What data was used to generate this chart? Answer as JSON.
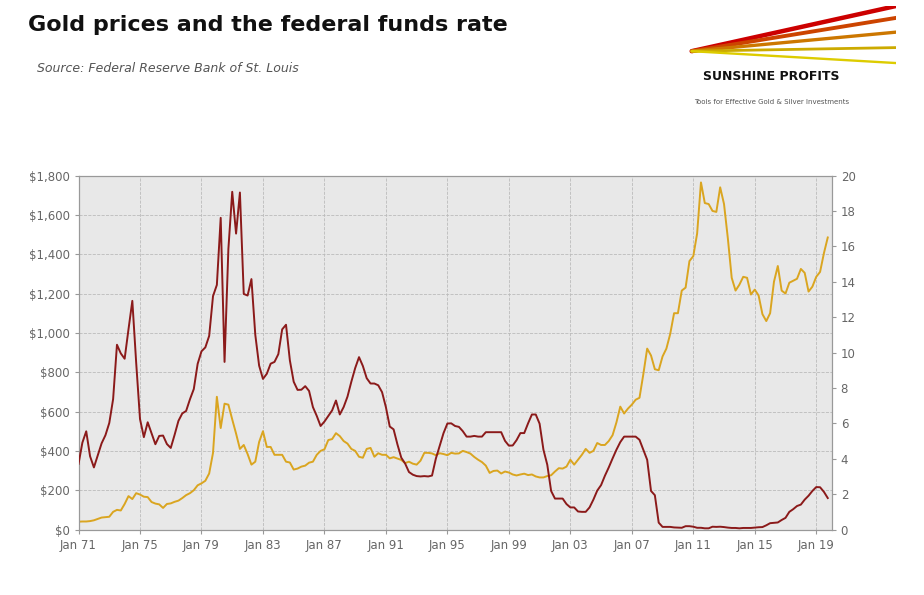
{
  "title": "Gold prices and the federal funds rate",
  "source": "Source: Federal Reserve Bank of St. Louis",
  "background_color": "#e8e8e8",
  "outer_background": "#ffffff",
  "gold_color": "#DAA520",
  "ffr_color": "#8B1A1A",
  "grid_color": "#bbbbbb",
  "left_ylim": [
    0,
    1800
  ],
  "right_ylim": [
    0,
    20
  ],
  "left_yticks": [
    0,
    200,
    400,
    600,
    800,
    1000,
    1200,
    1400,
    1600,
    1800
  ],
  "right_yticks": [
    0,
    2,
    4,
    6,
    8,
    10,
    12,
    14,
    16,
    18,
    20
  ],
  "left_yticklabels": [
    "$0",
    "$200",
    "$400",
    "$600",
    "$800",
    "$1,000",
    "$1,200",
    "$1,400",
    "$1,600",
    "$1,800"
  ],
  "right_yticklabels": [
    "0",
    "2",
    "4",
    "6",
    "8",
    "10",
    "12",
    "14",
    "16",
    "18",
    "20"
  ],
  "xtick_years": [
    1971,
    1975,
    1979,
    1983,
    1987,
    1991,
    1995,
    1999,
    2003,
    2007,
    2011,
    2015,
    2019
  ],
  "xtick_labels": [
    "Jan 71",
    "Jan 75",
    "Jan 79",
    "Jan 83",
    "Jan 87",
    "Jan 91",
    "Jan 95",
    "Jan 99",
    "Jan 03",
    "Jan 07",
    "Jan 11",
    "Jan 15",
    "Jan 19"
  ],
  "logo_ray_colors": [
    "#cc0000",
    "#cc4400",
    "#cc7700",
    "#ccaa00",
    "#ddcc00"
  ],
  "logo_text_main": "SUNSHINE PROFITS",
  "logo_text_sub": "Tools for Effective Gold & Silver Investments",
  "ffr_data": [
    [
      1971.0,
      3.71
    ],
    [
      1971.25,
      4.91
    ],
    [
      1971.5,
      5.55
    ],
    [
      1971.75,
      4.14
    ],
    [
      1972.0,
      3.51
    ],
    [
      1972.25,
      4.19
    ],
    [
      1972.5,
      4.87
    ],
    [
      1972.75,
      5.33
    ],
    [
      1973.0,
      6.02
    ],
    [
      1973.25,
      7.37
    ],
    [
      1973.5,
      10.44
    ],
    [
      1973.75,
      9.95
    ],
    [
      1974.0,
      9.65
    ],
    [
      1974.25,
      11.31
    ],
    [
      1974.5,
      12.92
    ],
    [
      1974.75,
      9.43
    ],
    [
      1975.0,
      6.24
    ],
    [
      1975.25,
      5.22
    ],
    [
      1975.5,
      6.06
    ],
    [
      1975.75,
      5.44
    ],
    [
      1976.0,
      4.82
    ],
    [
      1976.25,
      5.29
    ],
    [
      1976.5,
      5.31
    ],
    [
      1976.75,
      4.83
    ],
    [
      1977.0,
      4.61
    ],
    [
      1977.25,
      5.35
    ],
    [
      1977.5,
      6.14
    ],
    [
      1977.75,
      6.56
    ],
    [
      1978.0,
      6.7
    ],
    [
      1978.25,
      7.36
    ],
    [
      1978.5,
      7.94
    ],
    [
      1978.75,
      9.36
    ],
    [
      1979.0,
      10.07
    ],
    [
      1979.25,
      10.29
    ],
    [
      1979.5,
      10.94
    ],
    [
      1979.75,
      13.19
    ],
    [
      1980.0,
      13.82
    ],
    [
      1980.25,
      17.61
    ],
    [
      1980.5,
      9.47
    ],
    [
      1980.75,
      15.85
    ],
    [
      1981.0,
      19.08
    ],
    [
      1981.25,
      16.72
    ],
    [
      1981.5,
      19.04
    ],
    [
      1981.75,
      13.31
    ],
    [
      1982.0,
      13.22
    ],
    [
      1982.25,
      14.15
    ],
    [
      1982.5,
      11.01
    ],
    [
      1982.75,
      9.26
    ],
    [
      1983.0,
      8.51
    ],
    [
      1983.25,
      8.8
    ],
    [
      1983.5,
      9.37
    ],
    [
      1983.75,
      9.47
    ],
    [
      1984.0,
      9.91
    ],
    [
      1984.25,
      11.31
    ],
    [
      1984.5,
      11.57
    ],
    [
      1984.75,
      9.56
    ],
    [
      1985.0,
      8.35
    ],
    [
      1985.25,
      7.89
    ],
    [
      1985.5,
      7.9
    ],
    [
      1985.75,
      8.1
    ],
    [
      1986.0,
      7.83
    ],
    [
      1986.25,
      6.92
    ],
    [
      1986.5,
      6.42
    ],
    [
      1986.75,
      5.85
    ],
    [
      1987.0,
      6.1
    ],
    [
      1987.25,
      6.42
    ],
    [
      1987.5,
      6.73
    ],
    [
      1987.75,
      7.29
    ],
    [
      1988.0,
      6.5
    ],
    [
      1988.25,
      6.92
    ],
    [
      1988.5,
      7.51
    ],
    [
      1988.75,
      8.35
    ],
    [
      1989.0,
      9.12
    ],
    [
      1989.25,
      9.74
    ],
    [
      1989.5,
      9.24
    ],
    [
      1989.75,
      8.55
    ],
    [
      1990.0,
      8.25
    ],
    [
      1990.25,
      8.25
    ],
    [
      1990.5,
      8.15
    ],
    [
      1990.75,
      7.76
    ],
    [
      1991.0,
      6.91
    ],
    [
      1991.25,
      5.82
    ],
    [
      1991.5,
      5.66
    ],
    [
      1991.75,
      4.81
    ],
    [
      1992.0,
      4.06
    ],
    [
      1992.25,
      3.73
    ],
    [
      1992.5,
      3.25
    ],
    [
      1992.75,
      3.1
    ],
    [
      1993.0,
      3.02
    ],
    [
      1993.25,
      3.0
    ],
    [
      1993.5,
      3.02
    ],
    [
      1993.75,
      3.0
    ],
    [
      1994.0,
      3.05
    ],
    [
      1994.25,
      4.01
    ],
    [
      1994.5,
      4.73
    ],
    [
      1994.75,
      5.45
    ],
    [
      1995.0,
      5.99
    ],
    [
      1995.25,
      6.0
    ],
    [
      1995.5,
      5.85
    ],
    [
      1995.75,
      5.8
    ],
    [
      1996.0,
      5.56
    ],
    [
      1996.25,
      5.25
    ],
    [
      1996.5,
      5.25
    ],
    [
      1996.75,
      5.29
    ],
    [
      1997.0,
      5.25
    ],
    [
      1997.25,
      5.25
    ],
    [
      1997.5,
      5.5
    ],
    [
      1997.75,
      5.5
    ],
    [
      1998.0,
      5.5
    ],
    [
      1998.25,
      5.5
    ],
    [
      1998.5,
      5.5
    ],
    [
      1998.75,
      5.01
    ],
    [
      1999.0,
      4.74
    ],
    [
      1999.25,
      4.75
    ],
    [
      1999.5,
      5.05
    ],
    [
      1999.75,
      5.45
    ],
    [
      2000.0,
      5.45
    ],
    [
      2000.25,
      6.0
    ],
    [
      2000.5,
      6.5
    ],
    [
      2000.75,
      6.5
    ],
    [
      2001.0,
      5.98
    ],
    [
      2001.25,
      4.51
    ],
    [
      2001.5,
      3.66
    ],
    [
      2001.75,
      2.18
    ],
    [
      2002.0,
      1.75
    ],
    [
      2002.25,
      1.75
    ],
    [
      2002.5,
      1.75
    ],
    [
      2002.75,
      1.44
    ],
    [
      2003.0,
      1.25
    ],
    [
      2003.25,
      1.25
    ],
    [
      2003.5,
      1.02
    ],
    [
      2003.75,
      1.0
    ],
    [
      2004.0,
      1.0
    ],
    [
      2004.25,
      1.25
    ],
    [
      2004.5,
      1.69
    ],
    [
      2004.75,
      2.2
    ],
    [
      2005.0,
      2.51
    ],
    [
      2005.25,
      3.04
    ],
    [
      2005.5,
      3.51
    ],
    [
      2005.75,
      4.02
    ],
    [
      2006.0,
      4.51
    ],
    [
      2006.25,
      4.94
    ],
    [
      2006.5,
      5.25
    ],
    [
      2006.75,
      5.25
    ],
    [
      2007.0,
      5.25
    ],
    [
      2007.25,
      5.25
    ],
    [
      2007.5,
      5.07
    ],
    [
      2007.75,
      4.5
    ],
    [
      2008.0,
      3.94
    ],
    [
      2008.25,
      2.18
    ],
    [
      2008.5,
      1.94
    ],
    [
      2008.75,
      0.39
    ],
    [
      2009.0,
      0.15
    ],
    [
      2009.25,
      0.15
    ],
    [
      2009.5,
      0.15
    ],
    [
      2009.75,
      0.12
    ],
    [
      2010.0,
      0.11
    ],
    [
      2010.25,
      0.1
    ],
    [
      2010.5,
      0.19
    ],
    [
      2010.75,
      0.19
    ],
    [
      2011.0,
      0.16
    ],
    [
      2011.25,
      0.1
    ],
    [
      2011.5,
      0.1
    ],
    [
      2011.75,
      0.07
    ],
    [
      2012.0,
      0.07
    ],
    [
      2012.25,
      0.16
    ],
    [
      2012.5,
      0.15
    ],
    [
      2012.75,
      0.16
    ],
    [
      2013.0,
      0.14
    ],
    [
      2013.25,
      0.11
    ],
    [
      2013.5,
      0.09
    ],
    [
      2013.75,
      0.09
    ],
    [
      2014.0,
      0.07
    ],
    [
      2014.25,
      0.09
    ],
    [
      2014.5,
      0.09
    ],
    [
      2014.75,
      0.09
    ],
    [
      2015.0,
      0.11
    ],
    [
      2015.25,
      0.13
    ],
    [
      2015.5,
      0.14
    ],
    [
      2015.75,
      0.24
    ],
    [
      2016.0,
      0.36
    ],
    [
      2016.25,
      0.38
    ],
    [
      2016.5,
      0.4
    ],
    [
      2016.75,
      0.54
    ],
    [
      2017.0,
      0.66
    ],
    [
      2017.25,
      1.0
    ],
    [
      2017.5,
      1.15
    ],
    [
      2017.75,
      1.33
    ],
    [
      2018.0,
      1.41
    ],
    [
      2018.25,
      1.69
    ],
    [
      2018.5,
      1.91
    ],
    [
      2018.75,
      2.18
    ],
    [
      2019.0,
      2.4
    ],
    [
      2019.25,
      2.39
    ],
    [
      2019.5,
      2.13
    ],
    [
      2019.75,
      1.78
    ]
  ],
  "gold_data": [
    [
      1971.0,
      40
    ],
    [
      1971.25,
      41
    ],
    [
      1971.5,
      41
    ],
    [
      1971.75,
      43
    ],
    [
      1972.0,
      47
    ],
    [
      1972.25,
      54
    ],
    [
      1972.5,
      61
    ],
    [
      1972.75,
      63
    ],
    [
      1973.0,
      65
    ],
    [
      1973.25,
      90
    ],
    [
      1973.5,
      100
    ],
    [
      1973.75,
      97
    ],
    [
      1974.0,
      130
    ],
    [
      1974.25,
      170
    ],
    [
      1974.5,
      155
    ],
    [
      1974.75,
      185
    ],
    [
      1975.0,
      178
    ],
    [
      1975.25,
      167
    ],
    [
      1975.5,
      165
    ],
    [
      1975.75,
      140
    ],
    [
      1976.0,
      132
    ],
    [
      1976.25,
      128
    ],
    [
      1976.5,
      110
    ],
    [
      1976.75,
      130
    ],
    [
      1977.0,
      133
    ],
    [
      1977.25,
      141
    ],
    [
      1977.5,
      147
    ],
    [
      1977.75,
      160
    ],
    [
      1978.0,
      175
    ],
    [
      1978.25,
      185
    ],
    [
      1978.5,
      200
    ],
    [
      1978.75,
      225
    ],
    [
      1979.0,
      235
    ],
    [
      1979.25,
      248
    ],
    [
      1979.5,
      285
    ],
    [
      1979.75,
      390
    ],
    [
      1980.0,
      675
    ],
    [
      1980.25,
      516
    ],
    [
      1980.5,
      640
    ],
    [
      1980.75,
      635
    ],
    [
      1981.0,
      560
    ],
    [
      1981.25,
      488
    ],
    [
      1981.5,
      410
    ],
    [
      1981.75,
      430
    ],
    [
      1982.0,
      384
    ],
    [
      1982.25,
      330
    ],
    [
      1982.5,
      345
    ],
    [
      1982.75,
      445
    ],
    [
      1983.0,
      500
    ],
    [
      1983.25,
      420
    ],
    [
      1983.5,
      420
    ],
    [
      1983.75,
      380
    ],
    [
      1984.0,
      380
    ],
    [
      1984.25,
      380
    ],
    [
      1984.5,
      345
    ],
    [
      1984.75,
      341
    ],
    [
      1985.0,
      305
    ],
    [
      1985.25,
      310
    ],
    [
      1985.5,
      320
    ],
    [
      1985.75,
      325
    ],
    [
      1986.0,
      340
    ],
    [
      1986.25,
      345
    ],
    [
      1986.5,
      380
    ],
    [
      1986.75,
      400
    ],
    [
      1987.0,
      408
    ],
    [
      1987.25,
      455
    ],
    [
      1987.5,
      460
    ],
    [
      1987.75,
      490
    ],
    [
      1988.0,
      475
    ],
    [
      1988.25,
      450
    ],
    [
      1988.5,
      437
    ],
    [
      1988.75,
      410
    ],
    [
      1989.0,
      400
    ],
    [
      1989.25,
      370
    ],
    [
      1989.5,
      365
    ],
    [
      1989.75,
      410
    ],
    [
      1990.0,
      415
    ],
    [
      1990.25,
      370
    ],
    [
      1990.5,
      388
    ],
    [
      1990.75,
      380
    ],
    [
      1991.0,
      380
    ],
    [
      1991.25,
      362
    ],
    [
      1991.5,
      368
    ],
    [
      1991.75,
      361
    ],
    [
      1992.0,
      354
    ],
    [
      1992.25,
      338
    ],
    [
      1992.5,
      345
    ],
    [
      1992.75,
      335
    ],
    [
      1993.0,
      330
    ],
    [
      1993.25,
      350
    ],
    [
      1993.5,
      390
    ],
    [
      1993.75,
      390
    ],
    [
      1994.0,
      387
    ],
    [
      1994.25,
      378
    ],
    [
      1994.5,
      388
    ],
    [
      1994.75,
      384
    ],
    [
      1995.0,
      378
    ],
    [
      1995.25,
      390
    ],
    [
      1995.5,
      386
    ],
    [
      1995.75,
      387
    ],
    [
      1996.0,
      400
    ],
    [
      1996.25,
      394
    ],
    [
      1996.5,
      386
    ],
    [
      1996.75,
      369
    ],
    [
      1997.0,
      355
    ],
    [
      1997.25,
      343
    ],
    [
      1997.5,
      325
    ],
    [
      1997.75,
      288
    ],
    [
      1998.0,
      298
    ],
    [
      1998.25,
      300
    ],
    [
      1998.5,
      285
    ],
    [
      1998.75,
      295
    ],
    [
      1999.0,
      290
    ],
    [
      1999.25,
      280
    ],
    [
      1999.5,
      275
    ],
    [
      1999.75,
      280
    ],
    [
      2000.0,
      284
    ],
    [
      2000.25,
      277
    ],
    [
      2000.5,
      280
    ],
    [
      2000.75,
      270
    ],
    [
      2001.0,
      265
    ],
    [
      2001.25,
      265
    ],
    [
      2001.5,
      272
    ],
    [
      2001.75,
      276
    ],
    [
      2002.0,
      295
    ],
    [
      2002.25,
      312
    ],
    [
      2002.5,
      310
    ],
    [
      2002.75,
      320
    ],
    [
      2003.0,
      355
    ],
    [
      2003.25,
      330
    ],
    [
      2003.5,
      355
    ],
    [
      2003.75,
      380
    ],
    [
      2004.0,
      410
    ],
    [
      2004.25,
      390
    ],
    [
      2004.5,
      400
    ],
    [
      2004.75,
      440
    ],
    [
      2005.0,
      430
    ],
    [
      2005.25,
      430
    ],
    [
      2005.5,
      450
    ],
    [
      2005.75,
      480
    ],
    [
      2006.0,
      545
    ],
    [
      2006.25,
      625
    ],
    [
      2006.5,
      590
    ],
    [
      2006.75,
      615
    ],
    [
      2007.0,
      635
    ],
    [
      2007.25,
      660
    ],
    [
      2007.5,
      670
    ],
    [
      2007.75,
      790
    ],
    [
      2008.0,
      920
    ],
    [
      2008.25,
      885
    ],
    [
      2008.5,
      815
    ],
    [
      2008.75,
      810
    ],
    [
      2009.0,
      880
    ],
    [
      2009.25,
      920
    ],
    [
      2009.5,
      995
    ],
    [
      2009.75,
      1100
    ],
    [
      2010.0,
      1100
    ],
    [
      2010.25,
      1215
    ],
    [
      2010.5,
      1230
    ],
    [
      2010.75,
      1365
    ],
    [
      2011.0,
      1390
    ],
    [
      2011.25,
      1505
    ],
    [
      2011.5,
      1765
    ],
    [
      2011.75,
      1660
    ],
    [
      2012.0,
      1655
    ],
    [
      2012.25,
      1620
    ],
    [
      2012.5,
      1615
    ],
    [
      2012.75,
      1740
    ],
    [
      2013.0,
      1655
    ],
    [
      2013.25,
      1480
    ],
    [
      2013.5,
      1280
    ],
    [
      2013.75,
      1215
    ],
    [
      2014.0,
      1245
    ],
    [
      2014.25,
      1285
    ],
    [
      2014.5,
      1280
    ],
    [
      2014.75,
      1195
    ],
    [
      2015.0,
      1220
    ],
    [
      2015.25,
      1190
    ],
    [
      2015.5,
      1095
    ],
    [
      2015.75,
      1060
    ],
    [
      2016.0,
      1100
    ],
    [
      2016.25,
      1260
    ],
    [
      2016.5,
      1340
    ],
    [
      2016.75,
      1215
    ],
    [
      2017.0,
      1200
    ],
    [
      2017.25,
      1255
    ],
    [
      2017.5,
      1265
    ],
    [
      2017.75,
      1275
    ],
    [
      2018.0,
      1325
    ],
    [
      2018.25,
      1305
    ],
    [
      2018.5,
      1210
    ],
    [
      2018.75,
      1235
    ],
    [
      2019.0,
      1285
    ],
    [
      2019.25,
      1310
    ],
    [
      2019.5,
      1405
    ],
    [
      2019.75,
      1485
    ]
  ]
}
